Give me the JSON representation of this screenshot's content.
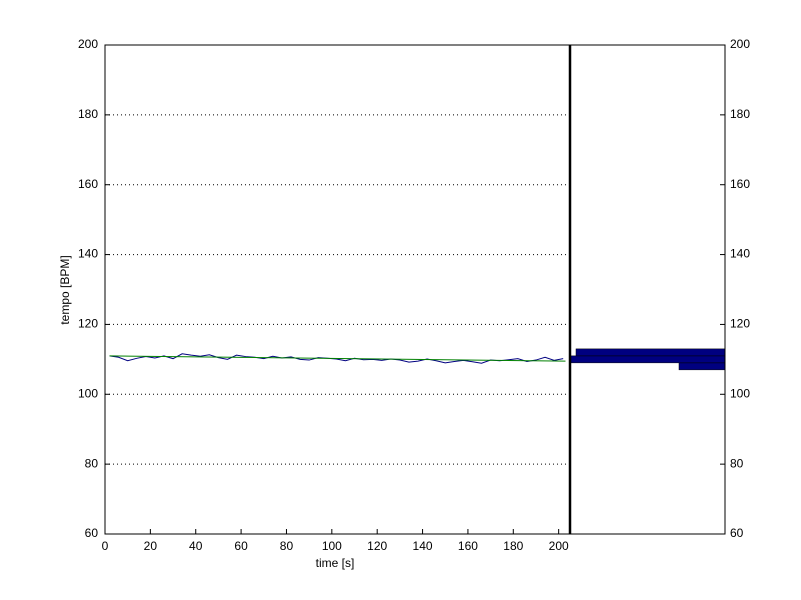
{
  "chart_data": [
    {
      "type": "line",
      "xlabel": "time [s]",
      "ylabel": "tempo [BPM]",
      "x": [
        2,
        6,
        10,
        14,
        18,
        22,
        26,
        30,
        34,
        38,
        42,
        46,
        50,
        54,
        58,
        62,
        66,
        70,
        74,
        78,
        82,
        86,
        90,
        94,
        98,
        102,
        106,
        110,
        114,
        118,
        122,
        126,
        130,
        134,
        138,
        142,
        146,
        150,
        154,
        158,
        162,
        166,
        170,
        174,
        178,
        182,
        186,
        190,
        194,
        198,
        202
      ],
      "series": [
        {
          "color": "#000080",
          "values": [
            111,
            110.6,
            109.6,
            110.3,
            110.8,
            110.4,
            111.0,
            110.2,
            111.6,
            111.2,
            110.9,
            111.3,
            110.5,
            110.0,
            111.2,
            110.8,
            110.6,
            110.2,
            110.9,
            110.4,
            110.7,
            110.0,
            109.8,
            110.5,
            110.3,
            110.1,
            109.6,
            110.3,
            109.9,
            110.0,
            109.7,
            110.1,
            109.8,
            109.2,
            109.5,
            110.1,
            109.6,
            109.0,
            109.4,
            109.7,
            109.3,
            108.9,
            109.8,
            109.6,
            109.9,
            110.2,
            109.4,
            109.8,
            110.6,
            109.7,
            110.2
          ]
        },
        {
          "color": "#008000",
          "x": [
            2,
            203
          ],
          "values": [
            111,
            109.5
          ]
        }
      ],
      "xlim": [
        0,
        205
      ],
      "ylim": [
        60,
        200
      ],
      "xticks": [
        0,
        20,
        40,
        60,
        80,
        100,
        120,
        140,
        160,
        180,
        200
      ],
      "yticks": [
        60,
        80,
        100,
        120,
        140,
        160,
        180,
        200
      ],
      "grid": true
    },
    {
      "type": "histogram",
      "orientation": "horizontal",
      "x_reversed": true,
      "bins": [
        107,
        109,
        111,
        113
      ],
      "values": [
        46,
        155,
        149
      ],
      "color": "#000080",
      "xlim": [
        0,
        155
      ],
      "ylim": [
        60,
        200
      ],
      "yticks": [
        60,
        80,
        100,
        120,
        140,
        160,
        180,
        200
      ]
    }
  ]
}
